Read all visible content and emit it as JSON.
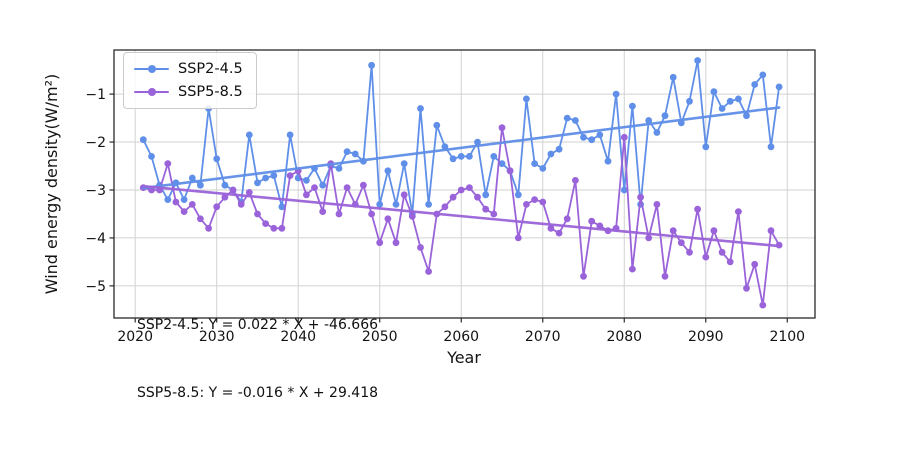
{
  "chart_data": {
    "type": "line",
    "title": "",
    "xlabel": "Year",
    "ylabel": "Wind energy density(W/m²)",
    "grid": true,
    "legend_position": "upper left",
    "xlim": [
      2017.4,
      2103.4
    ],
    "ylim": [
      -5.67,
      -0.08
    ],
    "xticks": [
      2020,
      2030,
      2040,
      2050,
      2060,
      2070,
      2080,
      2090,
      2100
    ],
    "xtick_labels": [
      "2020",
      "2030",
      "2040",
      "2050",
      "2060",
      "2070",
      "2080",
      "2090",
      "2100"
    ],
    "yticks": [
      -1,
      -2,
      -3,
      -4,
      -5
    ],
    "ytick_labels": [
      "−1",
      "−2",
      "−3",
      "−4",
      "−5"
    ],
    "x": [
      2021,
      2022,
      2023,
      2024,
      2025,
      2026,
      2027,
      2028,
      2029,
      2030,
      2031,
      2032,
      2033,
      2034,
      2035,
      2036,
      2037,
      2038,
      2039,
      2040,
      2041,
      2042,
      2043,
      2044,
      2045,
      2046,
      2047,
      2048,
      2049,
      2050,
      2051,
      2052,
      2053,
      2054,
      2055,
      2056,
      2057,
      2058,
      2059,
      2060,
      2061,
      2062,
      2063,
      2064,
      2065,
      2066,
      2067,
      2068,
      2069,
      2070,
      2071,
      2072,
      2073,
      2074,
      2075,
      2076,
      2077,
      2078,
      2079,
      2080,
      2081,
      2082,
      2083,
      2084,
      2085,
      2086,
      2087,
      2088,
      2089,
      2090,
      2091,
      2092,
      2093,
      2094,
      2095,
      2096,
      2097,
      2098,
      2099
    ],
    "series": [
      {
        "name": "SSP2-4.5",
        "color": "#5f8fe8",
        "values": [
          -1.95,
          -2.3,
          -2.9,
          -3.2,
          -2.85,
          -3.2,
          -2.75,
          -2.9,
          -1.3,
          -2.35,
          -2.9,
          -3.0,
          -3.25,
          -1.85,
          -2.85,
          -2.75,
          -2.7,
          -3.35,
          -1.85,
          -2.75,
          -2.8,
          -2.55,
          -2.9,
          -2.5,
          -2.55,
          -2.2,
          -2.25,
          -2.4,
          -0.4,
          -3.3,
          -2.6,
          -3.3,
          -2.45,
          -3.5,
          -1.3,
          -3.3,
          -1.65,
          -2.1,
          -2.35,
          -2.3,
          -2.3,
          -2.0,
          -3.1,
          -2.3,
          -2.45,
          -2.6,
          -3.1,
          -1.1,
          -2.45,
          -2.55,
          -2.25,
          -2.15,
          -1.5,
          -1.55,
          -1.9,
          -1.95,
          -1.85,
          -2.4,
          -1.0,
          -3.0,
          -1.25,
          -3.3,
          -1.55,
          -1.8,
          -1.45,
          -0.65,
          -1.6,
          -1.15,
          -0.3,
          -2.1,
          -0.95,
          -1.3,
          -1.15,
          -1.1,
          -1.45,
          -0.8,
          -0.6,
          -2.1,
          -0.85
        ],
        "trend": {
          "x1": 2021,
          "y1": -2.96,
          "x2": 2099,
          "y2": -1.28
        }
      },
      {
        "name": "SSP5-8.5",
        "color": "#9a63d9",
        "values": [
          -2.95,
          -3.0,
          -3.0,
          -2.45,
          -3.25,
          -3.45,
          -3.3,
          -3.6,
          -3.8,
          -3.35,
          -3.15,
          -3.0,
          -3.3,
          -3.05,
          -3.5,
          -3.7,
          -3.8,
          -3.8,
          -2.7,
          -2.6,
          -3.1,
          -2.95,
          -3.45,
          -2.45,
          -3.5,
          -2.95,
          -3.3,
          -2.9,
          -3.5,
          -4.1,
          -3.6,
          -4.1,
          -3.1,
          -3.55,
          -4.2,
          -4.7,
          -3.5,
          -3.35,
          -3.15,
          -3.0,
          -2.95,
          -3.15,
          -3.4,
          -3.5,
          -1.7,
          -2.6,
          -4.0,
          -3.3,
          -3.2,
          -3.25,
          -3.8,
          -3.9,
          -3.6,
          -2.8,
          -4.8,
          -3.65,
          -3.75,
          -3.85,
          -3.8,
          -1.9,
          -4.65,
          -3.15,
          -4.0,
          -3.3,
          -4.8,
          -3.85,
          -4.1,
          -4.3,
          -3.4,
          -4.4,
          -3.85,
          -4.3,
          -4.5,
          -3.45,
          -5.05,
          -4.55,
          -5.4,
          -3.85,
          -4.15
        ],
        "trend": {
          "x1": 2021,
          "y1": -2.92,
          "x2": 2099,
          "y2": -4.17
        }
      }
    ],
    "annotation_lines": [
      "SSP2-4.5: Y = 0.022 * X + -46.666",
      "SSP5-8.5: Y = -0.016 * X + 29.418"
    ]
  },
  "legend": {
    "items": [
      {
        "label": "SSP2-4.5",
        "color": "#5f8fe8"
      },
      {
        "label": "SSP5-8.5",
        "color": "#9a63d9"
      }
    ]
  }
}
